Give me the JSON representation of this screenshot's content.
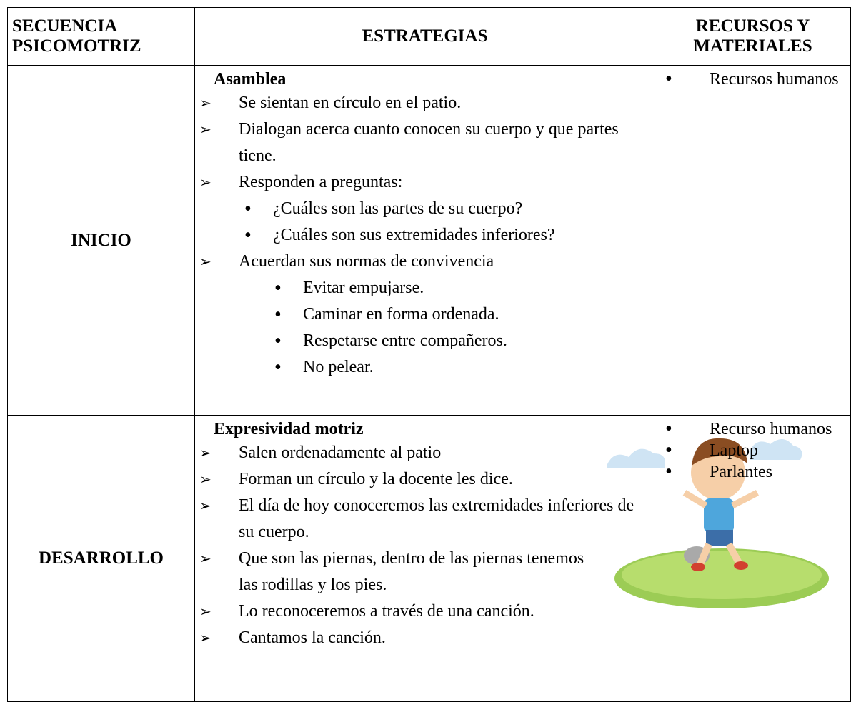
{
  "table": {
    "header": [
      "SECUENCIA PSICOMOTRIZ",
      "ESTRATEGIAS",
      "RECURSOS Y MATERIALES"
    ],
    "rows": [
      {
        "phase": "INICIO",
        "strategies": {
          "heading": "Asamblea",
          "items": [
            {
              "text": "Se sientan en círculo en el patio."
            },
            {
              "text": "Dialogan acerca cuanto conocen su cuerpo y que partes tiene."
            },
            {
              "text": "Responden a preguntas:",
              "subitems": [
                "¿Cuáles son las partes de su cuerpo?",
                "¿Cuáles son sus extremidades inferiores?"
              ]
            },
            {
              "text": "Acuerdan sus normas de convivencia",
              "subitems": [
                "Evitar empujarse.",
                "Caminar en forma ordenada.",
                "Respetarse entre compañeros.",
                "No pelear."
              ]
            }
          ]
        },
        "resources": [
          "Recursos humanos"
        ]
      },
      {
        "phase": "DESARROLLO",
        "strategies": {
          "heading": "Expresividad motriz",
          "items": [
            {
              "text": "Salen ordenadamente al patio"
            },
            {
              "text": "Forman un círculo y la docente les dice."
            },
            {
              "text": "El día de hoy conoceremos las extremidades inferiores de su cuerpo."
            },
            {
              "text": "Que son las piernas, dentro de las piernas tenemos",
              "continuation": "las rodillas y los pies."
            },
            {
              "text": "Lo reconoceremos a través de una canción."
            },
            {
              "text": "Cantamos la canción."
            }
          ]
        },
        "resources": [
          "Recurso humanos",
          "Laptop",
          "Parlantes"
        ]
      }
    ]
  }
}
